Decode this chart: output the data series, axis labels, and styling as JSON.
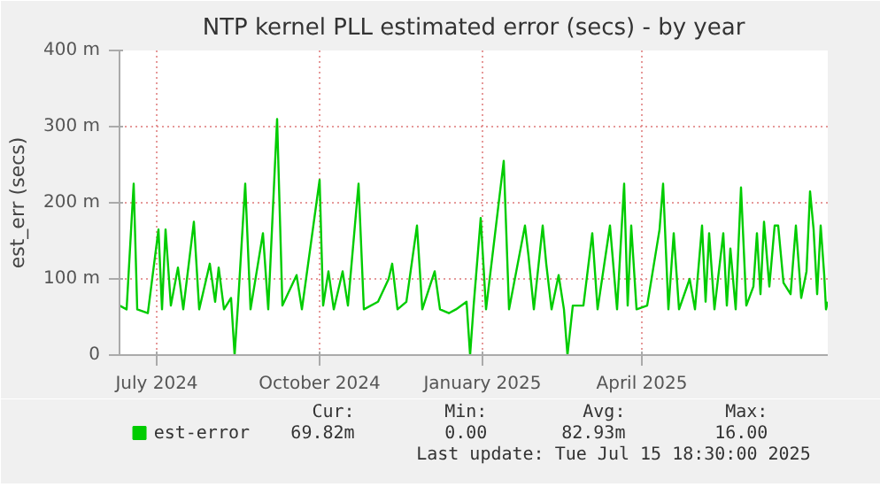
{
  "chart_data": {
    "type": "line",
    "title": "NTP kernel PLL estimated error (secs) - by year",
    "ylabel": "est_err (secs)",
    "xlim": [
      "2024-06-10",
      "2025-07-15"
    ],
    "xticks": [
      {
        "value": "2024-07-01",
        "label": "July 2024"
      },
      {
        "value": "2024-10-01",
        "label": "October 2024"
      },
      {
        "value": "2025-01-01",
        "label": "January 2025"
      },
      {
        "value": "2025-04-01",
        "label": "April 2025"
      }
    ],
    "ylim": [
      0,
      400
    ],
    "yticks": [
      0,
      {
        "value": 100,
        "label": "100 m"
      },
      {
        "value": 200,
        "label": "200 m"
      },
      {
        "value": 300,
        "label": "300 m"
      },
      {
        "value": 400,
        "label": "400 m"
      }
    ],
    "grid": true,
    "legend": "bottom",
    "line_style": "solid",
    "marker": "none",
    "x": [
      "2024-06-10",
      "2024-06-14",
      "2024-06-18",
      "2024-06-20",
      "2024-06-26",
      "2024-07-02",
      "2024-07-04",
      "2024-07-06",
      "2024-07-09",
      "2024-07-13",
      "2024-07-16",
      "2024-07-22",
      "2024-07-25",
      "2024-07-31",
      "2024-08-03",
      "2024-08-05",
      "2024-08-08",
      "2024-08-12",
      "2024-08-14",
      "2024-08-16",
      "2024-08-20",
      "2024-08-23",
      "2024-08-30",
      "2024-09-02",
      "2024-09-07",
      "2024-09-10",
      "2024-09-18",
      "2024-09-21",
      "2024-10-01",
      "2024-10-03",
      "2024-10-06",
      "2024-10-09",
      "2024-10-14",
      "2024-10-17",
      "2024-10-23",
      "2024-10-26",
      "2024-11-03",
      "2024-11-09",
      "2024-11-11",
      "2024-11-14",
      "2024-11-19",
      "2024-11-25",
      "2024-11-28",
      "2024-12-05",
      "2024-12-08",
      "2024-12-13",
      "2024-12-17",
      "2024-12-23",
      "2024-12-25",
      "2024-12-27",
      "2024-12-31",
      "2025-01-03",
      "2025-01-13",
      "2025-01-16",
      "2025-01-25",
      "2025-01-27",
      "2025-01-30",
      "2025-02-04",
      "2025-02-06",
      "2025-02-09",
      "2025-02-13",
      "2025-02-16",
      "2025-02-18",
      "2025-02-21",
      "2025-02-27",
      "2025-03-04",
      "2025-03-07",
      "2025-03-14",
      "2025-03-18",
      "2025-03-22",
      "2025-03-24",
      "2025-03-26",
      "2025-03-29",
      "2025-04-04",
      "2025-04-11",
      "2025-04-13",
      "2025-04-16",
      "2025-04-19",
      "2025-04-22",
      "2025-04-28",
      "2025-05-01",
      "2025-05-05",
      "2025-05-07",
      "2025-05-09",
      "2025-05-12",
      "2025-05-17",
      "2025-05-19",
      "2025-05-21",
      "2025-05-24",
      "2025-05-27",
      "2025-05-30",
      "2025-06-03",
      "2025-06-05",
      "2025-06-07",
      "2025-06-09",
      "2025-06-12",
      "2025-06-15",
      "2025-06-17",
      "2025-06-20",
      "2025-06-24",
      "2025-06-27",
      "2025-06-30",
      "2025-07-03",
      "2025-07-05",
      "2025-07-07",
      "2025-07-09",
      "2025-07-11",
      "2025-07-13",
      "2025-07-14",
      "2025-07-15"
    ],
    "series": [
      {
        "name": "est-error",
        "color": "#00cc00",
        "values": [
          65,
          60,
          225,
          60,
          55,
          165,
          60,
          165,
          65,
          115,
          60,
          175,
          60,
          120,
          70,
          115,
          60,
          75,
          0,
          70,
          225,
          60,
          160,
          60,
          310,
          65,
          105,
          60,
          230,
          65,
          110,
          60,
          110,
          65,
          225,
          60,
          70,
          100,
          120,
          60,
          70,
          170,
          60,
          110,
          60,
          55,
          60,
          70,
          0,
          65,
          180,
          60,
          255,
          60,
          170,
          130,
          60,
          170,
          120,
          60,
          105,
          60,
          0,
          65,
          65,
          160,
          60,
          170,
          60,
          225,
          65,
          170,
          60,
          65,
          165,
          225,
          60,
          160,
          60,
          100,
          60,
          170,
          70,
          160,
          60,
          160,
          65,
          140,
          60,
          220,
          65,
          90,
          160,
          80,
          175,
          90,
          170,
          170,
          95,
          80,
          170,
          75,
          110,
          215,
          165,
          80,
          170,
          105,
          60,
          70
        ]
      }
    ],
    "annotations": [
      "Cur:",
      "Min:",
      "Avg:",
      "Max:",
      "69.82m",
      "0.00",
      "82.93m",
      "16.00",
      "Last update: Tue Jul 15 18:30:00 2025"
    ]
  }
}
